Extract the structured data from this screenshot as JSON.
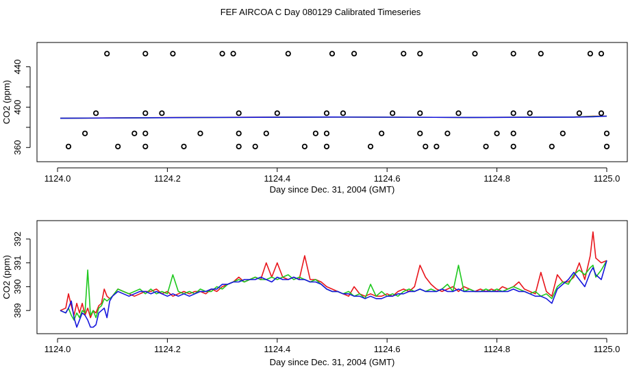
{
  "title": "FEF AIRCOA C  Day 080129  Calibrated Timeseries",
  "colors": {
    "series_red": "#e8141a",
    "series_green": "#1ec81e",
    "series_blue": "#1414dc",
    "axis": "#000000"
  },
  "chart_data": [
    {
      "type": "scatter",
      "title": "",
      "xlabel": "Day since Dec. 31, 2004 (GMT)",
      "ylabel": "CO2 (ppm)",
      "xlim": [
        1124.0,
        1125.0
      ],
      "ylim": [
        350,
        460
      ],
      "xticks": [
        "1124.0",
        "1124.2",
        "1124.4",
        "1124.6",
        "1124.8",
        "1125.0"
      ],
      "yticks": [
        "360",
        "400",
        "440"
      ],
      "marker_series": {
        "name": "",
        "points": [
          [
            1124.09,
            453
          ],
          [
            1124.16,
            453
          ],
          [
            1124.21,
            453
          ],
          [
            1124.3,
            453
          ],
          [
            1124.32,
            453
          ],
          [
            1124.42,
            453
          ],
          [
            1124.5,
            453
          ],
          [
            1124.54,
            453
          ],
          [
            1124.63,
            453
          ],
          [
            1124.66,
            453
          ],
          [
            1124.76,
            453
          ],
          [
            1124.83,
            453
          ],
          [
            1124.88,
            453
          ],
          [
            1124.97,
            453
          ],
          [
            1124.99,
            453
          ],
          [
            1124.07,
            394
          ],
          [
            1124.16,
            394
          ],
          [
            1124.19,
            394
          ],
          [
            1124.33,
            394
          ],
          [
            1124.4,
            394
          ],
          [
            1124.49,
            394
          ],
          [
            1124.52,
            394
          ],
          [
            1124.61,
            394
          ],
          [
            1124.66,
            394
          ],
          [
            1124.73,
            394
          ],
          [
            1124.83,
            394
          ],
          [
            1124.86,
            394
          ],
          [
            1124.95,
            394
          ],
          [
            1124.99,
            394
          ],
          [
            1124.05,
            374
          ],
          [
            1124.14,
            374
          ],
          [
            1124.16,
            374
          ],
          [
            1124.26,
            374
          ],
          [
            1124.33,
            374
          ],
          [
            1124.38,
            374
          ],
          [
            1124.47,
            374
          ],
          [
            1124.49,
            374
          ],
          [
            1124.59,
            374
          ],
          [
            1124.66,
            374
          ],
          [
            1124.71,
            374
          ],
          [
            1124.8,
            374
          ],
          [
            1124.83,
            374
          ],
          [
            1124.92,
            374
          ],
          [
            1125.0,
            374
          ],
          [
            1124.02,
            361
          ],
          [
            1124.11,
            361
          ],
          [
            1124.16,
            361
          ],
          [
            1124.23,
            361
          ],
          [
            1124.33,
            361
          ],
          [
            1124.36,
            361
          ],
          [
            1124.45,
            361
          ],
          [
            1124.49,
            361
          ],
          [
            1124.57,
            361
          ],
          [
            1124.67,
            361
          ],
          [
            1124.69,
            361
          ],
          [
            1124.78,
            361
          ],
          [
            1124.83,
            361
          ],
          [
            1124.9,
            361
          ],
          [
            1125.0,
            361
          ]
        ]
      },
      "series": [
        {
          "name": "",
          "color": "#e8141a",
          "x": [
            1124.005,
            1124.25,
            1124.5,
            1124.75,
            1124.94,
            1124.975,
            1125.0
          ],
          "y": [
            389.0,
            389.8,
            390.2,
            389.8,
            390.2,
            391.0,
            391.1
          ]
        },
        {
          "name": "",
          "color": "#1ec81e",
          "x": [
            1124.005,
            1124.25,
            1124.5,
            1124.75,
            1124.94,
            1124.975,
            1125.0
          ],
          "y": [
            389.0,
            389.7,
            390.2,
            389.8,
            390.2,
            390.8,
            391.1
          ]
        },
        {
          "name": "",
          "color": "#1414dc",
          "x": [
            1124.005,
            1124.25,
            1124.5,
            1124.75,
            1124.94,
            1124.975,
            1125.0
          ],
          "y": [
            389.0,
            389.7,
            390.2,
            389.8,
            390.1,
            390.5,
            391.1
          ]
        }
      ]
    },
    {
      "type": "line",
      "title": "",
      "xlabel": "Day since Dec. 31, 2004 (GMT)",
      "ylabel": "CO2 (ppm)",
      "xlim": [
        1124.0,
        1125.0
      ],
      "ylim": [
        388.2,
        392.6
      ],
      "xticks": [
        "1124.0",
        "1124.2",
        "1124.4",
        "1124.6",
        "1124.8",
        "1125.0"
      ],
      "yticks": [
        "389",
        "390",
        "391",
        "392"
      ],
      "x": [
        1124.005,
        1124.015,
        1124.02,
        1124.025,
        1124.03,
        1124.035,
        1124.04,
        1124.045,
        1124.05,
        1124.055,
        1124.06,
        1124.065,
        1124.07,
        1124.075,
        1124.08,
        1124.085,
        1124.09,
        1124.095,
        1124.1,
        1124.11,
        1124.12,
        1124.13,
        1124.14,
        1124.15,
        1124.16,
        1124.17,
        1124.18,
        1124.19,
        1124.2,
        1124.21,
        1124.22,
        1124.23,
        1124.24,
        1124.25,
        1124.26,
        1124.27,
        1124.28,
        1124.29,
        1124.3,
        1124.31,
        1124.32,
        1124.33,
        1124.34,
        1124.35,
        1124.36,
        1124.37,
        1124.38,
        1124.39,
        1124.4,
        1124.41,
        1124.42,
        1124.43,
        1124.44,
        1124.45,
        1124.46,
        1124.47,
        1124.48,
        1124.49,
        1124.5,
        1124.51,
        1124.52,
        1124.53,
        1124.54,
        1124.55,
        1124.56,
        1124.57,
        1124.58,
        1124.59,
        1124.6,
        1124.61,
        1124.62,
        1124.63,
        1124.64,
        1124.65,
        1124.66,
        1124.67,
        1124.68,
        1124.69,
        1124.7,
        1124.71,
        1124.72,
        1124.73,
        1124.74,
        1124.75,
        1124.76,
        1124.77,
        1124.78,
        1124.79,
        1124.8,
        1124.81,
        1124.82,
        1124.83,
        1124.84,
        1124.85,
        1124.86,
        1124.87,
        1124.88,
        1124.89,
        1124.9,
        1124.91,
        1124.92,
        1124.93,
        1124.94,
        1124.95,
        1124.96,
        1124.97,
        1124.975,
        1124.98,
        1124.99,
        1125.0
      ],
      "series": [
        {
          "name": "",
          "color": "#e8141a",
          "y": [
            389.0,
            389.1,
            389.7,
            389.2,
            388.8,
            389.3,
            388.9,
            389.3,
            388.8,
            389.1,
            388.7,
            389.0,
            388.9,
            389.2,
            389.3,
            389.9,
            389.6,
            389.5,
            389.6,
            389.9,
            389.8,
            389.7,
            389.6,
            389.7,
            389.8,
            389.8,
            389.9,
            389.7,
            389.8,
            389.6,
            389.7,
            389.8,
            389.7,
            389.8,
            389.8,
            389.7,
            389.9,
            389.8,
            390.0,
            390.1,
            390.2,
            390.4,
            390.2,
            390.3,
            390.4,
            390.3,
            391.0,
            390.4,
            391.0,
            390.4,
            390.3,
            390.4,
            390.3,
            391.3,
            390.3,
            390.3,
            390.2,
            390.0,
            389.9,
            389.8,
            389.7,
            389.6,
            390.0,
            389.7,
            389.6,
            389.7,
            389.6,
            389.6,
            389.7,
            389.6,
            389.8,
            389.9,
            389.8,
            390.0,
            390.9,
            390.4,
            390.1,
            389.9,
            389.8,
            389.9,
            390.0,
            389.8,
            390.0,
            389.9,
            389.8,
            389.9,
            389.8,
            389.9,
            389.8,
            390.0,
            389.9,
            390.0,
            390.2,
            389.9,
            389.8,
            389.7,
            390.6,
            389.8,
            389.6,
            390.5,
            390.2,
            390.2,
            390.4,
            391.0,
            390.3,
            391.3,
            392.3,
            391.2,
            391.0,
            391.1
          ]
        },
        {
          "name": "",
          "color": "#1ec81e",
          "y": [
            389.0,
            388.9,
            389.1,
            388.8,
            388.6,
            388.9,
            388.7,
            389.0,
            388.9,
            390.7,
            388.8,
            389.0,
            388.7,
            389.1,
            389.2,
            389.5,
            389.4,
            389.5,
            389.6,
            389.9,
            389.8,
            389.7,
            389.8,
            389.9,
            389.7,
            389.9,
            389.7,
            389.8,
            389.7,
            390.5,
            389.8,
            389.7,
            389.8,
            389.7,
            389.9,
            389.8,
            389.8,
            390.0,
            389.9,
            390.1,
            390.2,
            390.3,
            390.2,
            390.3,
            390.4,
            390.3,
            390.3,
            390.4,
            390.3,
            390.4,
            390.5,
            390.3,
            390.4,
            390.3,
            390.2,
            390.3,
            390.1,
            389.9,
            389.8,
            389.8,
            389.7,
            389.8,
            389.6,
            389.7,
            389.5,
            390.1,
            389.6,
            389.8,
            389.6,
            389.7,
            389.6,
            389.8,
            389.9,
            389.8,
            389.9,
            389.8,
            389.9,
            389.8,
            389.9,
            390.1,
            389.8,
            390.9,
            389.8,
            389.9,
            389.8,
            389.8,
            389.9,
            389.8,
            389.9,
            389.8,
            389.9,
            390.0,
            389.9,
            389.8,
            389.7,
            389.8,
            389.6,
            389.7,
            389.5,
            390.0,
            390.2,
            390.1,
            390.5,
            390.7,
            390.5,
            390.8,
            390.9,
            390.4,
            390.7,
            391.1
          ]
        },
        {
          "name": "",
          "color": "#1414dc",
          "y": [
            389.0,
            388.9,
            389.1,
            389.4,
            388.7,
            388.3,
            388.6,
            388.9,
            388.8,
            388.6,
            388.3,
            388.3,
            388.4,
            388.9,
            389.0,
            389.1,
            388.7,
            389.4,
            389.6,
            389.8,
            389.7,
            389.6,
            389.7,
            389.8,
            389.8,
            389.7,
            389.8,
            389.7,
            389.6,
            389.7,
            389.6,
            389.7,
            389.6,
            389.7,
            389.8,
            389.8,
            389.9,
            389.9,
            390.1,
            390.1,
            390.2,
            390.2,
            390.3,
            390.3,
            390.3,
            390.4,
            390.3,
            390.2,
            390.4,
            390.3,
            390.3,
            390.4,
            390.3,
            390.3,
            390.2,
            390.2,
            390.1,
            389.9,
            389.8,
            389.8,
            389.7,
            389.7,
            389.6,
            389.6,
            389.5,
            389.6,
            389.5,
            389.5,
            389.6,
            389.6,
            389.7,
            389.7,
            389.8,
            389.8,
            389.9,
            389.8,
            389.8,
            389.8,
            389.9,
            389.8,
            389.8,
            389.9,
            389.8,
            389.8,
            389.8,
            389.8,
            389.8,
            389.8,
            389.8,
            389.8,
            389.8,
            389.9,
            389.8,
            389.8,
            389.7,
            389.6,
            389.6,
            389.5,
            389.3,
            389.9,
            390.1,
            390.3,
            390.6,
            390.3,
            390.0,
            390.6,
            390.8,
            390.5,
            390.3,
            391.1
          ]
        }
      ]
    }
  ]
}
